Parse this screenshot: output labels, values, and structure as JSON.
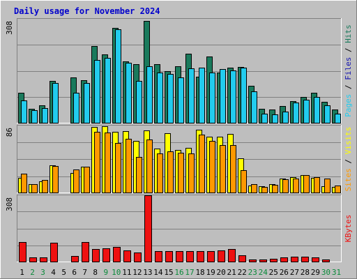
{
  "chart_data": {
    "type": "bar",
    "title": "Daily usage for November 2024",
    "colors": {
      "background": "#C0C0C0",
      "plot_background": "#BEBEBE",
      "title": "#0000CC",
      "hits": "#1A7A5C",
      "files": "#22CCEE",
      "pages": "#22CCEE",
      "visits": "#FFFF00",
      "sites": "#FF9900",
      "kbytes": "#EE1111",
      "weekend_label": "#0A8A3A",
      "weekday_label": "#000000"
    },
    "x": {
      "categories": [
        "1",
        "2",
        "3",
        "4",
        "5",
        "6",
        "7",
        "8",
        "9",
        "10",
        "11",
        "12",
        "13",
        "14",
        "15",
        "16",
        "17",
        "18",
        "19",
        "20",
        "21",
        "22",
        "23",
        "24",
        "25",
        "26",
        "27",
        "28",
        "29",
        "30",
        "31"
      ],
      "weekend_days": [
        "2",
        "3",
        "9",
        "10",
        "16",
        "17",
        "23",
        "24",
        "30",
        "31"
      ]
    },
    "panels": [
      {
        "id": "hits-files-pages",
        "ymax_label": "308",
        "ymax": 308,
        "right_labels": [
          {
            "text": "Pages",
            "color": "#22CCEE"
          },
          {
            "text": "Files",
            "color": "#1515B0"
          },
          {
            "text": "Hits",
            "color": "#1A7A5C"
          }
        ],
        "series": [
          {
            "name": "Hits",
            "color": "#1A7A5C",
            "values": [
              88,
              41,
              51,
              125,
              0,
              134,
              127,
              227,
              203,
              282,
              182,
              173,
              302,
              174,
              152,
              167,
              204,
              137,
              196,
              149,
              163,
              165,
              109,
              42,
              40,
              50,
              65,
              77,
              89,
              61,
              39
            ]
          },
          {
            "name": "Files",
            "color": "#22CCEE",
            "values": [
              66,
              37,
              44,
              117,
              0,
              89,
              117,
              187,
              193,
              276,
              178,
              124,
              167,
              148,
              144,
              135,
              161,
              163,
              148,
              160,
              155,
              163,
              92,
              27,
              24,
              33,
              59,
              69,
              76,
              51,
              26
            ]
          }
        ]
      },
      {
        "id": "visits-sites",
        "ymax_label": "86",
        "ymax": 86,
        "right_labels": [
          {
            "text": "Sites",
            "color": "#FF9900"
          },
          {
            "text": "Visits",
            "color": "#FFFF00"
          }
        ],
        "series": [
          {
            "name": "Visits",
            "color": "#FFFF00",
            "values": [
              19,
              11,
              14,
              35,
              0,
              25,
              33,
              84,
              85,
              78,
              79,
              66,
              80,
              56,
              76,
              55,
              57,
              81,
              72,
              72,
              75,
              44,
              9,
              8,
              11,
              18,
              20,
              22,
              19,
              8,
              7
            ]
          },
          {
            "name": "Sites",
            "color": "#FF9900",
            "values": [
              24,
              11,
              16,
              34,
              0,
              30,
              33,
              78,
              77,
              64,
              69,
              46,
              68,
              50,
              53,
              51,
              50,
              74,
              66,
              61,
              61,
              29,
              11,
              7,
              10,
              17,
              18,
              22,
              20,
              18,
              9
            ]
          }
        ]
      },
      {
        "id": "kbytes",
        "ymax_label": "308",
        "ymax": 308,
        "right_labels": [
          {
            "text": "KBytes",
            "color": "#EE1111"
          }
        ],
        "series": [
          {
            "name": "KBytes",
            "color": "#EE1111",
            "values": [
              90,
              18,
              20,
              89,
              0,
              26,
              92,
              57,
              63,
              69,
              52,
              43,
              308,
              49,
              48,
              49,
              49,
              48,
              48,
              53,
              57,
              28,
              11,
              11,
              14,
              18,
              24,
              24,
              21,
              10,
              0
            ]
          }
        ]
      }
    ]
  }
}
